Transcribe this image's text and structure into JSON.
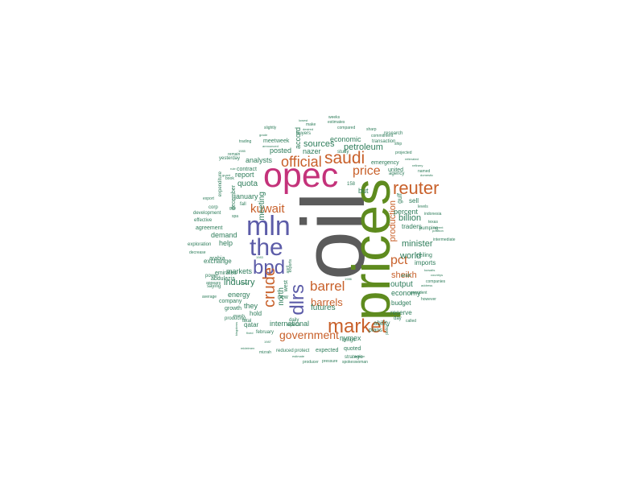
{
  "colors": {
    "oil": "#5b5b5b",
    "prices": "#5e8b1e",
    "opec": "#c4327a",
    "mln": "#5c5ca8",
    "orange": "#c8602a",
    "green": "#2f7d5b"
  },
  "words": [
    {
      "text": "oil",
      "weight": 1.0,
      "color": "oil",
      "vertical": true
    },
    {
      "text": "prices",
      "weight": 0.78,
      "color": "prices",
      "vertical": true
    },
    {
      "text": "opec",
      "weight": 0.72,
      "color": "opec",
      "vertical": false
    },
    {
      "text": "mln",
      "weight": 0.55,
      "color": "mln",
      "vertical": false
    },
    {
      "text": "the",
      "weight": 0.5,
      "color": "mln",
      "vertical": false
    },
    {
      "text": "bpd",
      "weight": 0.46,
      "color": "mln",
      "vertical": false
    },
    {
      "text": "dlrs",
      "weight": 0.4,
      "color": "mln",
      "vertical": true
    },
    {
      "text": "crude",
      "weight": 0.38,
      "color": "orange",
      "vertical": true
    },
    {
      "text": "market",
      "weight": 0.42,
      "color": "orange",
      "vertical": false
    },
    {
      "text": "reuter",
      "weight": 0.4,
      "color": "orange",
      "vertical": false
    },
    {
      "text": "saudi",
      "weight": 0.38,
      "color": "orange",
      "vertical": false
    },
    {
      "text": "official",
      "weight": 0.33,
      "color": "orange",
      "vertical": false
    },
    {
      "text": "price",
      "weight": 0.3,
      "color": "orange",
      "vertical": false
    },
    {
      "text": "pct",
      "weight": 0.3,
      "color": "orange",
      "vertical": false
    },
    {
      "text": "barrel",
      "weight": 0.3,
      "color": "orange",
      "vertical": false
    },
    {
      "text": "kuwait",
      "weight": 0.28,
      "color": "orange",
      "vertical": false
    },
    {
      "text": "government",
      "weight": 0.24,
      "color": "orange",
      "vertical": false
    },
    {
      "text": "barrels",
      "weight": 0.24,
      "color": "orange",
      "vertical": false
    },
    {
      "text": "production",
      "weight": 0.22,
      "color": "orange",
      "vertical": true
    },
    {
      "text": "sheikh",
      "weight": 0.22,
      "color": "orange",
      "vertical": false
    },
    {
      "text": "minister",
      "weight": 0.22,
      "color": "green",
      "vertical": false
    },
    {
      "text": "world",
      "weight": 0.2,
      "color": "green",
      "vertical": false
    },
    {
      "text": "sources",
      "weight": 0.2,
      "color": "green",
      "vertical": false
    },
    {
      "text": "petroleum",
      "weight": 0.2,
      "color": "green",
      "vertical": false
    },
    {
      "text": "industry",
      "weight": 0.2,
      "color": "green",
      "vertical": false
    },
    {
      "text": "quota",
      "weight": 0.18,
      "color": "green",
      "vertical": false
    },
    {
      "text": "meeting",
      "weight": 0.18,
      "color": "green",
      "vertical": true
    },
    {
      "text": "billion",
      "weight": 0.18,
      "color": "green",
      "vertical": false
    },
    {
      "text": "futures",
      "weight": 0.18,
      "color": "green",
      "vertical": false
    },
    {
      "text": "output",
      "weight": 0.18,
      "color": "green",
      "vertical": false
    },
    {
      "text": "north",
      "weight": 0.18,
      "color": "green",
      "vertical": true
    },
    {
      "text": "accord",
      "weight": 0.17,
      "color": "green",
      "vertical": true
    },
    {
      "text": "nazer",
      "weight": 0.16,
      "color": "green",
      "vertical": false
    },
    {
      "text": "january",
      "weight": 0.16,
      "color": "green",
      "vertical": false
    },
    {
      "text": "analysts",
      "weight": 0.16,
      "color": "green",
      "vertical": false
    },
    {
      "text": "economy",
      "weight": 0.16,
      "color": "green",
      "vertical": false
    },
    {
      "text": "international",
      "weight": 0.16,
      "color": "green",
      "vertical": false
    },
    {
      "text": "nymex",
      "weight": 0.15,
      "color": "green",
      "vertical": false
    },
    {
      "text": "but",
      "weight": 0.15,
      "color": "green",
      "vertical": false
    },
    {
      "text": "economic",
      "weight": 0.15,
      "color": "green",
      "vertical": false
    },
    {
      "text": "posted",
      "weight": 0.15,
      "color": "green",
      "vertical": false
    },
    {
      "text": "they",
      "weight": 0.14,
      "color": "green",
      "vertical": false
    },
    {
      "text": "markets",
      "weight": 0.14,
      "color": "green",
      "vertical": false
    },
    {
      "text": "demand",
      "weight": 0.14,
      "color": "green",
      "vertical": false
    },
    {
      "text": "energy",
      "weight": 0.14,
      "color": "green",
      "vertical": false
    },
    {
      "text": "report",
      "weight": 0.14,
      "color": "green",
      "vertical": false
    },
    {
      "text": "help",
      "weight": 0.14,
      "color": "green",
      "vertical": false
    },
    {
      "text": "imports",
      "weight": 0.13,
      "color": "green",
      "vertical": false
    },
    {
      "text": "traders",
      "weight": 0.13,
      "color": "green",
      "vertical": false
    },
    {
      "text": "budget",
      "weight": 0.13,
      "color": "green",
      "vertical": false
    },
    {
      "text": "reserve",
      "weight": 0.13,
      "color": "green",
      "vertical": false
    },
    {
      "text": "ability",
      "weight": 0.12,
      "color": "green",
      "vertical": false
    },
    {
      "text": "hold",
      "weight": 0.12,
      "color": "green",
      "vertical": false
    },
    {
      "text": "exchange",
      "weight": 0.12,
      "color": "green",
      "vertical": false
    },
    {
      "text": "company",
      "weight": 0.11,
      "color": "green",
      "vertical": false
    },
    {
      "text": "growth",
      "weight": 0.11,
      "color": "green",
      "vertical": false
    },
    {
      "text": "arabia",
      "weight": 0.11,
      "color": "green",
      "vertical": false
    },
    {
      "text": "emirates",
      "weight": 0.11,
      "color": "green",
      "vertical": false
    },
    {
      "text": "agreement",
      "weight": 0.11,
      "color": "green",
      "vertical": false
    },
    {
      "text": "emergency",
      "weight": 0.11,
      "color": "green",
      "vertical": false
    },
    {
      "text": "contract",
      "weight": 0.1,
      "color": "green",
      "vertical": false
    },
    {
      "text": "abdulaziz",
      "weight": 0.1,
      "color": "green",
      "vertical": false
    },
    {
      "text": "qatar",
      "weight": 0.1,
      "color": "green",
      "vertical": false
    },
    {
      "text": "expected",
      "weight": 0.1,
      "color": "green",
      "vertical": false
    },
    {
      "text": "quoted",
      "weight": 0.1,
      "color": "green",
      "vertical": false
    },
    {
      "text": "plans",
      "weight": 0.1,
      "color": "green",
      "vertical": false
    },
    {
      "text": "ceiling",
      "weight": 0.1,
      "color": "green",
      "vertical": false
    },
    {
      "text": "pumping",
      "weight": 0.09,
      "color": "green",
      "vertical": false
    },
    {
      "text": "percent",
      "weight": 0.11,
      "color": "green",
      "vertical": false
    },
    {
      "text": "sell",
      "weight": 0.1,
      "color": "green",
      "vertical": false
    },
    {
      "text": "gulf",
      "weight": 0.12,
      "color": "green",
      "vertical": true
    },
    {
      "text": "united",
      "weight": 0.09,
      "color": "green",
      "vertical": false
    },
    {
      "text": "research",
      "weight": 0.09,
      "color": "green",
      "vertical": false
    },
    {
      "text": "transaction",
      "weight": 0.08,
      "color": "green",
      "vertical": false
    },
    {
      "text": "agency",
      "weight": 0.08,
      "color": "green",
      "vertical": false
    },
    {
      "text": "study",
      "weight": 0.08,
      "color": "green",
      "vertical": false
    },
    {
      "text": "week",
      "weight": 0.08,
      "color": "green",
      "vertical": false
    },
    {
      "text": "meet",
      "weight": 0.08,
      "color": "green",
      "vertical": false
    },
    {
      "text": "buyers",
      "weight": 0.07,
      "color": "green",
      "vertical": false
    },
    {
      "text": "yesterday",
      "weight": 0.07,
      "color": "green",
      "vertical": false
    },
    {
      "text": "december",
      "weight": 0.09,
      "color": "green",
      "vertical": true
    },
    {
      "text": "expenditure",
      "weight": 0.07,
      "color": "green",
      "vertical": true
    },
    {
      "text": "corp",
      "weight": 0.07,
      "color": "green",
      "vertical": false
    },
    {
      "text": "development",
      "weight": 0.07,
      "color": "green",
      "vertical": false
    },
    {
      "text": "effective",
      "weight": 0.07,
      "color": "green",
      "vertical": false
    },
    {
      "text": "exploration",
      "weight": 0.07,
      "color": "green",
      "vertical": false
    },
    {
      "text": "saying",
      "weight": 0.07,
      "color": "green",
      "vertical": false
    },
    {
      "text": "power",
      "weight": 0.07,
      "color": "green",
      "vertical": false
    },
    {
      "text": "producing",
      "weight": 0.07,
      "color": "green",
      "vertical": false
    },
    {
      "text": "total",
      "weight": 0.07,
      "color": "green",
      "vertical": false
    },
    {
      "text": "february",
      "weight": 0.07,
      "color": "green",
      "vertical": false
    },
    {
      "text": "opecs",
      "weight": 0.07,
      "color": "green",
      "vertical": false
    },
    {
      "text": "daily",
      "weight": 0.07,
      "color": "green",
      "vertical": false
    },
    {
      "text": "new",
      "weight": 0.07,
      "color": "green",
      "vertical": false
    },
    {
      "text": "west",
      "weight": 0.07,
      "color": "green",
      "vertical": false
    },
    {
      "text": "brings",
      "weight": 0.07,
      "color": "green",
      "vertical": false
    },
    {
      "text": "strategic",
      "weight": 0.07,
      "color": "green",
      "vertical": false
    },
    {
      "text": "reduced",
      "weight": 0.06,
      "color": "green",
      "vertical": false
    },
    {
      "text": "protect",
      "weight": 0.06,
      "color": "green",
      "vertical": false
    },
    {
      "text": "day",
      "weight": 0.07,
      "color": "green",
      "vertical": false
    },
    {
      "text": "called",
      "weight": 0.06,
      "color": "green",
      "vertical": false
    },
    {
      "text": "arab",
      "weight": 0.07,
      "color": "green",
      "vertical": false
    },
    {
      "text": "texas",
      "weight": 0.06,
      "color": "green",
      "vertical": false
    },
    {
      "text": "levels",
      "weight": 0.06,
      "color": "green",
      "vertical": false
    },
    {
      "text": "indonesia",
      "weight": 0.05,
      "color": "green",
      "vertical": false
    },
    {
      "text": "current",
      "weight": 0.05,
      "color": "green",
      "vertical": false
    },
    {
      "text": "intermediate",
      "weight": 0.05,
      "color": "green",
      "vertical": false
    },
    {
      "text": "companies",
      "weight": 0.05,
      "color": "green",
      "vertical": false
    },
    {
      "text": "address",
      "weight": 0.05,
      "color": "green",
      "vertical": false
    },
    {
      "text": "however",
      "weight": 0.05,
      "color": "green",
      "vertical": false
    },
    {
      "text": "president",
      "weight": 0.05,
      "color": "green",
      "vertical": false
    },
    {
      "text": "countrys",
      "weight": 0.05,
      "color": "green",
      "vertical": false
    },
    {
      "text": "kuwaits",
      "weight": 0.05,
      "color": "green",
      "vertical": false
    },
    {
      "text": "position",
      "weight": 0.05,
      "color": "green",
      "vertical": false
    },
    {
      "text": "named",
      "weight": 0.05,
      "color": "green",
      "vertical": false
    },
    {
      "text": "domestic",
      "weight": 0.05,
      "color": "green",
      "vertical": false
    },
    {
      "text": "refinery",
      "weight": 0.05,
      "color": "green",
      "vertical": false
    },
    {
      "text": "reiterated",
      "weight": 0.05,
      "color": "green",
      "vertical": false
    },
    {
      "text": "projected",
      "weight": 0.05,
      "color": "green",
      "vertical": false
    },
    {
      "text": "ship",
      "weight": 0.05,
      "color": "green",
      "vertical": false
    },
    {
      "text": "sharp",
      "weight": 0.05,
      "color": "green",
      "vertical": false
    },
    {
      "text": "compared",
      "weight": 0.05,
      "color": "green",
      "vertical": false
    },
    {
      "text": "commitment",
      "weight": 0.05,
      "color": "green",
      "vertical": false
    },
    {
      "text": "estimates",
      "weight": 0.05,
      "color": "green",
      "vertical": false
    },
    {
      "text": "weeks",
      "weight": 0.05,
      "color": "green",
      "vertical": false
    },
    {
      "text": "lowest",
      "weight": 0.05,
      "color": "green",
      "vertical": false
    },
    {
      "text": "make",
      "weight": 0.05,
      "color": "green",
      "vertical": false
    },
    {
      "text": "desired",
      "weight": 0.05,
      "color": "green",
      "vertical": false
    },
    {
      "text": "slightly",
      "weight": 0.05,
      "color": "green",
      "vertical": false
    },
    {
      "text": "grade",
      "weight": 0.05,
      "color": "green",
      "vertical": false
    },
    {
      "text": "announced",
      "weight": 0.05,
      "color": "green",
      "vertical": false
    },
    {
      "text": "trading",
      "weight": 0.05,
      "color": "green",
      "vertical": false
    },
    {
      "text": "remain",
      "weight": 0.05,
      "color": "green",
      "vertical": false
    },
    {
      "text": "book",
      "weight": 0.05,
      "color": "green",
      "vertical": false
    },
    {
      "text": "rule",
      "weight": 0.05,
      "color": "green",
      "vertical": false
    },
    {
      "text": "guard",
      "weight": 0.05,
      "color": "green",
      "vertical": false
    },
    {
      "text": "export",
      "weight": 0.05,
      "color": "green",
      "vertical": false
    },
    {
      "text": "decrease",
      "weight": 0.05,
      "color": "green",
      "vertical": false
    },
    {
      "text": "average",
      "weight": 0.05,
      "color": "green",
      "vertical": false
    },
    {
      "text": "appears",
      "weight": 0.05,
      "color": "green",
      "vertical": false
    },
    {
      "text": "march",
      "weight": 0.05,
      "color": "green",
      "vertical": false
    },
    {
      "text": "fixed",
      "weight": 0.05,
      "color": "green",
      "vertical": false
    },
    {
      "text": "mideimen",
      "weight": 0.05,
      "color": "green",
      "vertical": false
    },
    {
      "text": "mizrah",
      "weight": 0.05,
      "color": "green",
      "vertical": false
    },
    {
      "text": "estimate",
      "weight": 0.05,
      "color": "green",
      "vertical": false
    },
    {
      "text": "producer",
      "weight": 0.05,
      "color": "green",
      "vertical": false
    },
    {
      "text": "pressure",
      "weight": 0.05,
      "color": "green",
      "vertical": false
    },
    {
      "text": "spokeswoman",
      "weight": 0.05,
      "color": "green",
      "vertical": false
    },
    {
      "text": "arabian",
      "weight": 0.05,
      "color": "green",
      "vertical": false
    },
    {
      "text": "policy",
      "weight": 0.05,
      "color": "green",
      "vertical": true
    },
    {
      "text": "april",
      "weight": 0.06,
      "color": "green",
      "vertical": true
    },
    {
      "text": "exports",
      "weight": 0.06,
      "color": "green",
      "vertical": true
    },
    {
      "text": "fall",
      "weight": 0.05,
      "color": "green",
      "vertical": false
    },
    {
      "text": "gas",
      "weight": 0.05,
      "color": "green",
      "vertical": false
    },
    {
      "text": "spa",
      "weight": 0.05,
      "color": "green",
      "vertical": false
    },
    {
      "text": "1987",
      "weight": 0.05,
      "color": "green",
      "vertical": false
    },
    {
      "text": "158",
      "weight": 0.06,
      "color": "green",
      "vertical": false
    },
    {
      "text": "1986",
      "weight": 0.05,
      "color": "green",
      "vertical": false
    },
    {
      "text": "1985",
      "weight": 0.05,
      "color": "green",
      "vertical": false
    },
    {
      "text": "1983",
      "weight": 0.05,
      "color": "green",
      "vertical": false
    },
    {
      "text": "texaco",
      "weight": 0.05,
      "color": "green",
      "vertical": false
    },
    {
      "text": "kingdoms",
      "weight": 0.05,
      "color": "green",
      "vertical": true
    }
  ]
}
